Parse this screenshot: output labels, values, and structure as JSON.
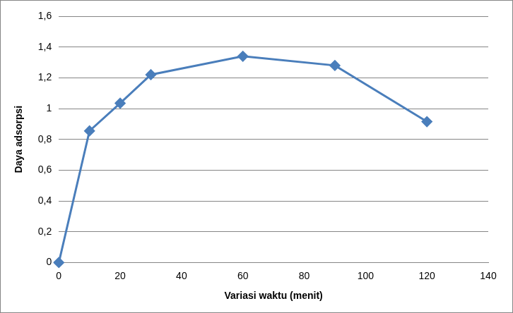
{
  "chart_data": {
    "type": "line",
    "x_label": "Variasi waktu (menit)",
    "y_label": "Daya adsorpsi",
    "x": [
      0,
      10,
      20,
      30,
      60,
      90,
      120
    ],
    "values": [
      0,
      0.855,
      1.035,
      1.22,
      1.34,
      1.28,
      0.915
    ],
    "color": "#4a7ebb",
    "marker": "diamond",
    "line_style": "solid",
    "xlim": [
      0,
      140
    ],
    "xticks": [
      0,
      20,
      40,
      60,
      80,
      100,
      120,
      140
    ],
    "ylim": [
      0,
      1.6
    ],
    "yticks": [
      0,
      {
        "value": 0.2,
        "label": "0,2"
      },
      {
        "value": 0.4,
        "label": "0,4"
      },
      {
        "value": 0.6,
        "label": "0,6"
      },
      {
        "value": 0.8,
        "label": "0,8"
      },
      1,
      {
        "value": 1.2,
        "label": "1,2"
      },
      {
        "value": 1.4,
        "label": "1,4"
      },
      {
        "value": 1.6,
        "label": "1,6"
      }
    ],
    "grid": "y"
  }
}
